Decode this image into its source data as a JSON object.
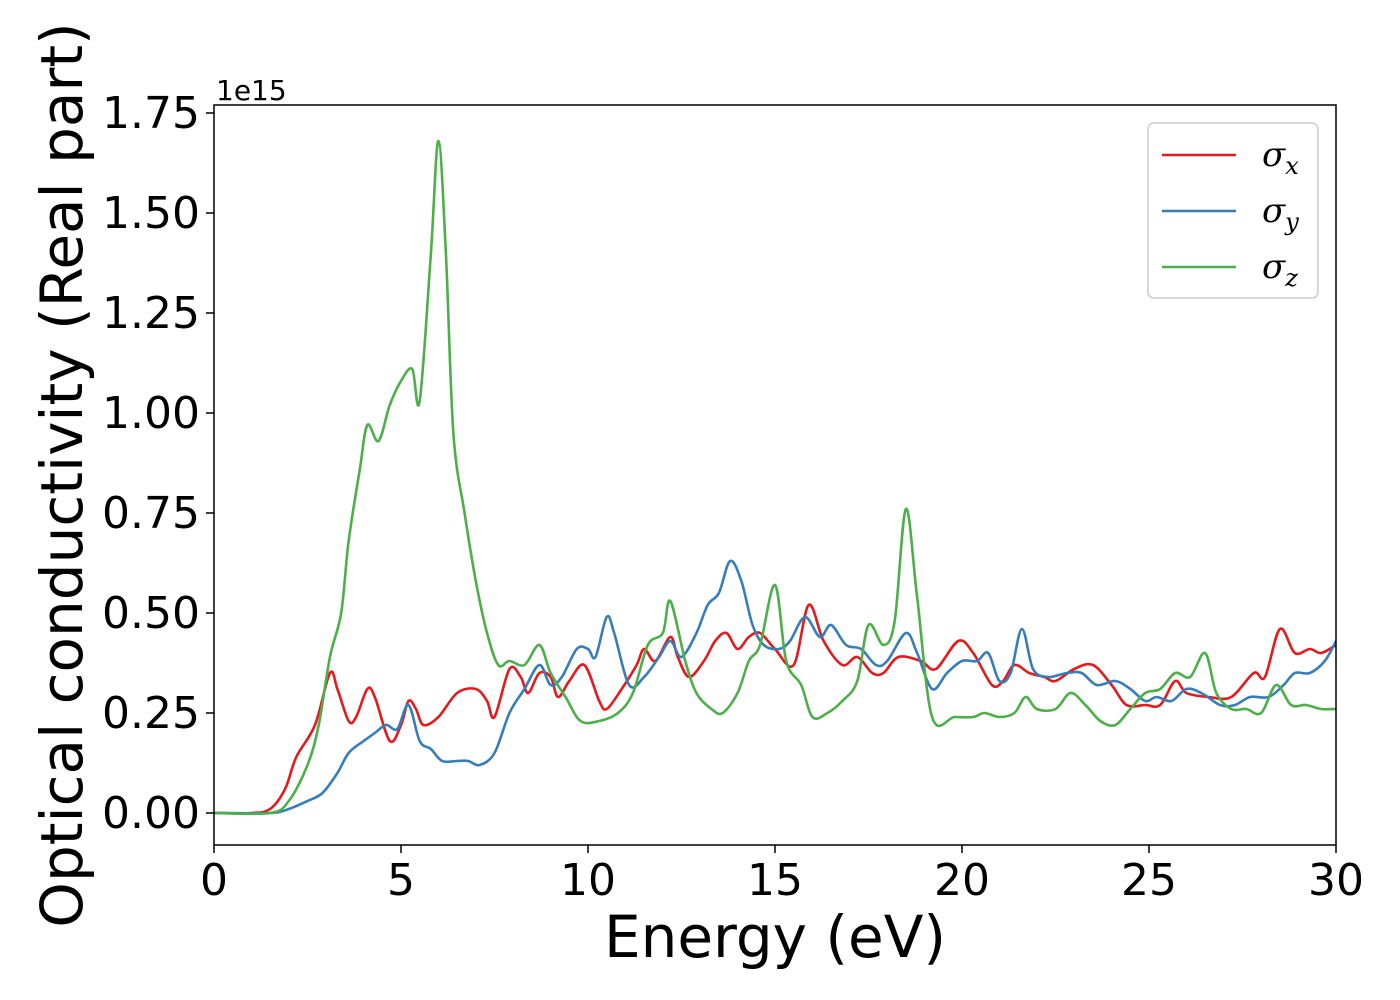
{
  "chart_data": {
    "type": "line",
    "xlabel": "Energy (eV)",
    "ylabel": "Optical conductivity (Real part)",
    "y_offset_label": "1e15",
    "y_scale": 1000000000000000.0,
    "xlim": [
      0,
      30
    ],
    "ylim": [
      -0.08,
      1.77
    ],
    "x_ticks": [
      0,
      5,
      10,
      15,
      20,
      25,
      30
    ],
    "x_tick_labels": [
      "0",
      "5",
      "10",
      "15",
      "20",
      "25",
      "30"
    ],
    "y_ticks": [
      0,
      0.25,
      0.5,
      0.75,
      1.0,
      1.25,
      1.5,
      1.75
    ],
    "y_tick_labels": [
      "0.00",
      "0.25",
      "0.50",
      "0.75",
      "1.00",
      "1.25",
      "1.50",
      "1.75"
    ],
    "grid": false,
    "legend_position": "top-right",
    "series": [
      {
        "name": "σx",
        "symbol": "σ",
        "subscript": "x",
        "color": "#e41a1c",
        "points": [
          [
            0,
            0
          ],
          [
            1,
            0
          ],
          [
            1.5,
            0.01
          ],
          [
            1.9,
            0.06
          ],
          [
            2.2,
            0.14
          ],
          [
            2.7,
            0.22
          ],
          [
            3.1,
            0.35
          ],
          [
            3.3,
            0.31
          ],
          [
            3.6,
            0.23
          ],
          [
            3.8,
            0.24
          ],
          [
            4.1,
            0.31
          ],
          [
            4.3,
            0.29
          ],
          [
            4.7,
            0.18
          ],
          [
            5.0,
            0.22
          ],
          [
            5.2,
            0.28
          ],
          [
            5.4,
            0.26
          ],
          [
            5.6,
            0.22
          ],
          [
            6.0,
            0.24
          ],
          [
            6.5,
            0.3
          ],
          [
            7.0,
            0.31
          ],
          [
            7.3,
            0.28
          ],
          [
            7.5,
            0.24
          ],
          [
            7.9,
            0.36
          ],
          [
            8.2,
            0.34
          ],
          [
            8.4,
            0.3
          ],
          [
            8.7,
            0.35
          ],
          [
            9.0,
            0.34
          ],
          [
            9.2,
            0.29
          ],
          [
            9.5,
            0.33
          ],
          [
            9.9,
            0.37
          ],
          [
            10.3,
            0.28
          ],
          [
            10.5,
            0.26
          ],
          [
            10.9,
            0.31
          ],
          [
            11.3,
            0.37
          ],
          [
            11.5,
            0.41
          ],
          [
            11.8,
            0.38
          ],
          [
            12.2,
            0.44
          ],
          [
            12.4,
            0.39
          ],
          [
            12.7,
            0.34
          ],
          [
            13.1,
            0.38
          ],
          [
            13.4,
            0.43
          ],
          [
            13.7,
            0.45
          ],
          [
            14.0,
            0.41
          ],
          [
            14.3,
            0.44
          ],
          [
            14.6,
            0.45
          ],
          [
            15.0,
            0.41
          ],
          [
            15.5,
            0.37
          ],
          [
            15.9,
            0.52
          ],
          [
            16.3,
            0.43
          ],
          [
            16.8,
            0.37
          ],
          [
            17.2,
            0.39
          ],
          [
            17.6,
            0.35
          ],
          [
            17.9,
            0.35
          ],
          [
            18.3,
            0.39
          ],
          [
            18.9,
            0.38
          ],
          [
            19.3,
            0.36
          ],
          [
            19.9,
            0.43
          ],
          [
            20.3,
            0.4
          ],
          [
            20.8,
            0.32
          ],
          [
            21.1,
            0.33
          ],
          [
            21.4,
            0.37
          ],
          [
            21.8,
            0.35
          ],
          [
            22.2,
            0.34
          ],
          [
            22.5,
            0.33
          ],
          [
            23.0,
            0.36
          ],
          [
            23.5,
            0.37
          ],
          [
            24.0,
            0.32
          ],
          [
            24.4,
            0.27
          ],
          [
            24.9,
            0.27
          ],
          [
            25.3,
            0.27
          ],
          [
            25.7,
            0.33
          ],
          [
            26.0,
            0.3
          ],
          [
            26.6,
            0.29
          ],
          [
            27.2,
            0.29
          ],
          [
            27.8,
            0.35
          ],
          [
            28.1,
            0.34
          ],
          [
            28.5,
            0.46
          ],
          [
            28.9,
            0.4
          ],
          [
            29.3,
            0.41
          ],
          [
            29.6,
            0.4
          ],
          [
            30.0,
            0.42
          ]
        ]
      },
      {
        "name": "σy",
        "symbol": "σ",
        "subscript": "y",
        "color": "#377eb8",
        "points": [
          [
            0,
            0
          ],
          [
            1.5,
            0
          ],
          [
            2.0,
            0.01
          ],
          [
            2.5,
            0.03
          ],
          [
            2.9,
            0.05
          ],
          [
            3.3,
            0.1
          ],
          [
            3.6,
            0.15
          ],
          [
            4.0,
            0.18
          ],
          [
            4.3,
            0.2
          ],
          [
            4.6,
            0.22
          ],
          [
            4.9,
            0.21
          ],
          [
            5.2,
            0.27
          ],
          [
            5.5,
            0.18
          ],
          [
            5.8,
            0.16
          ],
          [
            6.1,
            0.13
          ],
          [
            6.5,
            0.13
          ],
          [
            6.8,
            0.13
          ],
          [
            7.1,
            0.12
          ],
          [
            7.5,
            0.15
          ],
          [
            7.9,
            0.25
          ],
          [
            8.3,
            0.31
          ],
          [
            8.7,
            0.37
          ],
          [
            9.0,
            0.32
          ],
          [
            9.3,
            0.34
          ],
          [
            9.7,
            0.41
          ],
          [
            10.0,
            0.41
          ],
          [
            10.2,
            0.39
          ],
          [
            10.5,
            0.49
          ],
          [
            10.7,
            0.45
          ],
          [
            11.1,
            0.32
          ],
          [
            11.5,
            0.34
          ],
          [
            11.9,
            0.39
          ],
          [
            12.2,
            0.43
          ],
          [
            12.5,
            0.39
          ],
          [
            12.9,
            0.45
          ],
          [
            13.2,
            0.52
          ],
          [
            13.5,
            0.55
          ],
          [
            13.8,
            0.63
          ],
          [
            14.1,
            0.58
          ],
          [
            14.4,
            0.47
          ],
          [
            14.7,
            0.42
          ],
          [
            15.1,
            0.41
          ],
          [
            15.4,
            0.43
          ],
          [
            15.8,
            0.49
          ],
          [
            16.2,
            0.44
          ],
          [
            16.5,
            0.47
          ],
          [
            16.9,
            0.42
          ],
          [
            17.3,
            0.41
          ],
          [
            17.7,
            0.37
          ],
          [
            18.0,
            0.38
          ],
          [
            18.5,
            0.45
          ],
          [
            18.8,
            0.4
          ],
          [
            19.2,
            0.31
          ],
          [
            19.6,
            0.35
          ],
          [
            20.0,
            0.38
          ],
          [
            20.4,
            0.38
          ],
          [
            20.7,
            0.4
          ],
          [
            21.0,
            0.33
          ],
          [
            21.3,
            0.35
          ],
          [
            21.6,
            0.46
          ],
          [
            21.9,
            0.36
          ],
          [
            22.3,
            0.34
          ],
          [
            22.8,
            0.35
          ],
          [
            23.2,
            0.35
          ],
          [
            23.6,
            0.32
          ],
          [
            24.1,
            0.33
          ],
          [
            24.5,
            0.31
          ],
          [
            24.9,
            0.28
          ],
          [
            25.2,
            0.29
          ],
          [
            25.6,
            0.28
          ],
          [
            26.0,
            0.31
          ],
          [
            26.4,
            0.3
          ],
          [
            26.9,
            0.27
          ],
          [
            27.3,
            0.27
          ],
          [
            27.7,
            0.29
          ],
          [
            28.2,
            0.29
          ],
          [
            28.6,
            0.32
          ],
          [
            28.9,
            0.35
          ],
          [
            29.3,
            0.35
          ],
          [
            29.7,
            0.38
          ],
          [
            30.0,
            0.43
          ]
        ]
      },
      {
        "name": "σz",
        "symbol": "σ",
        "subscript": "z",
        "color": "#4daf4a",
        "points": [
          [
            0,
            0
          ],
          [
            1.5,
            0
          ],
          [
            2.0,
            0.03
          ],
          [
            2.5,
            0.12
          ],
          [
            2.8,
            0.22
          ],
          [
            3.1,
            0.39
          ],
          [
            3.4,
            0.5
          ],
          [
            3.6,
            0.68
          ],
          [
            3.9,
            0.86
          ],
          [
            4.1,
            0.97
          ],
          [
            4.4,
            0.93
          ],
          [
            4.7,
            1.02
          ],
          [
            5.0,
            1.08
          ],
          [
            5.3,
            1.11
          ],
          [
            5.5,
            1.03
          ],
          [
            5.8,
            1.4
          ],
          [
            6.0,
            1.68
          ],
          [
            6.2,
            1.4
          ],
          [
            6.4,
            0.95
          ],
          [
            6.7,
            0.75
          ],
          [
            7.0,
            0.58
          ],
          [
            7.3,
            0.45
          ],
          [
            7.6,
            0.37
          ],
          [
            7.9,
            0.38
          ],
          [
            8.3,
            0.37
          ],
          [
            8.7,
            0.42
          ],
          [
            9.0,
            0.35
          ],
          [
            9.4,
            0.29
          ],
          [
            9.8,
            0.23
          ],
          [
            10.3,
            0.23
          ],
          [
            10.8,
            0.25
          ],
          [
            11.2,
            0.3
          ],
          [
            11.6,
            0.42
          ],
          [
            12.0,
            0.45
          ],
          [
            12.2,
            0.53
          ],
          [
            12.6,
            0.38
          ],
          [
            12.9,
            0.3
          ],
          [
            13.3,
            0.26
          ],
          [
            13.6,
            0.25
          ],
          [
            14.0,
            0.3
          ],
          [
            14.3,
            0.38
          ],
          [
            14.6,
            0.42
          ],
          [
            15.0,
            0.57
          ],
          [
            15.3,
            0.38
          ],
          [
            15.7,
            0.32
          ],
          [
            16.0,
            0.24
          ],
          [
            16.4,
            0.25
          ],
          [
            16.8,
            0.28
          ],
          [
            17.2,
            0.33
          ],
          [
            17.5,
            0.47
          ],
          [
            17.9,
            0.42
          ],
          [
            18.2,
            0.48
          ],
          [
            18.5,
            0.76
          ],
          [
            18.8,
            0.54
          ],
          [
            19.2,
            0.24
          ],
          [
            19.8,
            0.24
          ],
          [
            20.3,
            0.24
          ],
          [
            20.6,
            0.25
          ],
          [
            21.0,
            0.24
          ],
          [
            21.4,
            0.25
          ],
          [
            21.7,
            0.29
          ],
          [
            22.0,
            0.26
          ],
          [
            22.5,
            0.26
          ],
          [
            22.9,
            0.3
          ],
          [
            23.3,
            0.27
          ],
          [
            23.7,
            0.23
          ],
          [
            24.1,
            0.22
          ],
          [
            24.5,
            0.26
          ],
          [
            24.9,
            0.3
          ],
          [
            25.3,
            0.31
          ],
          [
            25.7,
            0.35
          ],
          [
            26.1,
            0.34
          ],
          [
            26.5,
            0.4
          ],
          [
            26.8,
            0.3
          ],
          [
            27.2,
            0.26
          ],
          [
            27.6,
            0.26
          ],
          [
            28.0,
            0.25
          ],
          [
            28.4,
            0.32
          ],
          [
            28.8,
            0.27
          ],
          [
            29.2,
            0.27
          ],
          [
            29.6,
            0.26
          ],
          [
            30.0,
            0.26
          ]
        ]
      }
    ]
  }
}
